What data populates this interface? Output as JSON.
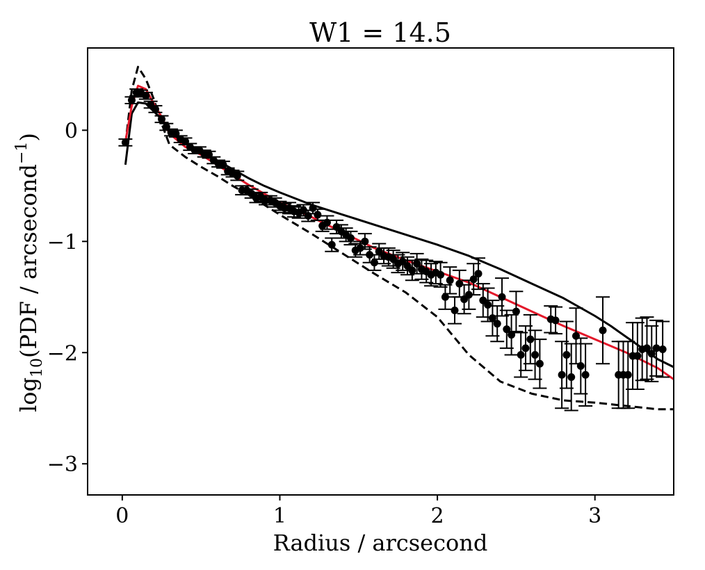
{
  "chart_data": {
    "type": "scatter",
    "title": "W1 = 14.5",
    "xlabel": "Radius / arcsecond",
    "ylabel": "log10(PDF / arcsecond⁻¹)",
    "ylabel_parts": {
      "log": "log",
      "sub": "10",
      "body": "(PDF / arcsecond",
      "sup": "−1",
      "close": ")"
    },
    "xlim": [
      -0.22,
      3.5
    ],
    "ylim": [
      -3.28,
      0.74
    ],
    "xticks": [
      0,
      1,
      2,
      3
    ],
    "xtick_labels": [
      "0",
      "1",
      "2",
      "3"
    ],
    "yticks": [
      0,
      -1,
      -2,
      -3
    ],
    "ytick_labels": [
      "0",
      "−1",
      "−2",
      "−3"
    ],
    "grid": false,
    "colors": {
      "points": "#000000",
      "model_red": "#e3182a",
      "model_black": "#000000"
    },
    "points": {
      "x": [
        0.02,
        0.06,
        0.09,
        0.12,
        0.15,
        0.18,
        0.21,
        0.25,
        0.28,
        0.31,
        0.34,
        0.37,
        0.4,
        0.43,
        0.46,
        0.49,
        0.52,
        0.55,
        0.58,
        0.61,
        0.64,
        0.67,
        0.7,
        0.73,
        0.76,
        0.79,
        0.82,
        0.85,
        0.88,
        0.91,
        0.94,
        0.97,
        1.0,
        1.03,
        1.06,
        1.09,
        1.12,
        1.15,
        1.18,
        1.21,
        1.24,
        1.27,
        1.3,
        1.33,
        1.36,
        1.39,
        1.42,
        1.45,
        1.48,
        1.51,
        1.54,
        1.57,
        1.6,
        1.63,
        1.66,
        1.69,
        1.72,
        1.75,
        1.78,
        1.81,
        1.84,
        1.87,
        1.9,
        1.93,
        1.96,
        1.99,
        2.02,
        2.05,
        2.08,
        2.11,
        2.14,
        2.17,
        2.2,
        2.23,
        2.26,
        2.29,
        2.32,
        2.35,
        2.38,
        2.41,
        2.44,
        2.47,
        2.5,
        2.53,
        2.56,
        2.59,
        2.62,
        2.65,
        2.72,
        2.75,
        2.79,
        2.82,
        2.85,
        2.88,
        2.91,
        2.94,
        3.05,
        3.15,
        3.18,
        3.21,
        3.24,
        3.27,
        3.3,
        3.33,
        3.36,
        3.39,
        3.43
      ],
      "y": [
        -0.11,
        0.27,
        0.34,
        0.33,
        0.31,
        0.23,
        0.19,
        0.1,
        0.03,
        -0.02,
        -0.03,
        -0.08,
        -0.1,
        -0.15,
        -0.18,
        -0.18,
        -0.21,
        -0.22,
        -0.27,
        -0.3,
        -0.31,
        -0.37,
        -0.39,
        -0.41,
        -0.54,
        -0.54,
        -0.57,
        -0.61,
        -0.6,
        -0.63,
        -0.63,
        -0.65,
        -0.68,
        -0.7,
        -0.7,
        -0.73,
        -0.74,
        -0.72,
        -0.77,
        -0.7,
        -0.76,
        -0.86,
        -0.83,
        -1.03,
        -0.87,
        -0.91,
        -0.94,
        -0.97,
        -1.08,
        -1.06,
        -1.0,
        -1.12,
        -1.19,
        -1.09,
        -1.13,
        -1.14,
        -1.16,
        -1.2,
        -1.18,
        -1.22,
        -1.26,
        -1.2,
        -1.25,
        -1.27,
        -1.3,
        -1.28,
        -1.3,
        -1.5,
        -1.35,
        -1.62,
        -1.38,
        -1.52,
        -1.48,
        -1.34,
        -1.29,
        -1.53,
        -1.57,
        -1.69,
        -1.74,
        -1.5,
        -1.79,
        -1.84,
        -1.63,
        -2.02,
        -1.96,
        -1.88,
        -2.02,
        -2.1,
        -1.7,
        -1.71,
        -2.2,
        -2.02,
        -2.22,
        -1.85,
        -2.12,
        -2.2,
        -1.8,
        -2.2,
        -2.2,
        -2.2,
        -2.03,
        -2.03,
        -1.97,
        -1.96,
        -2.01,
        -1.96,
        -1.97
      ],
      "err": [
        0.03,
        0.03,
        0.03,
        0.03,
        0.03,
        0.03,
        0.03,
        0.03,
        0.03,
        0.03,
        0.03,
        0.03,
        0.03,
        0.03,
        0.03,
        0.03,
        0.03,
        0.03,
        0.03,
        0.03,
        0.03,
        0.03,
        0.03,
        0.04,
        0.04,
        0.04,
        0.04,
        0.04,
        0.04,
        0.04,
        0.04,
        0.04,
        0.04,
        0.04,
        0.05,
        0.05,
        0.05,
        0.05,
        0.05,
        0.05,
        0.05,
        0.05,
        0.06,
        0.06,
        0.06,
        0.06,
        0.06,
        0.06,
        0.06,
        0.06,
        0.07,
        0.07,
        0.07,
        0.07,
        0.07,
        0.08,
        0.08,
        0.08,
        0.08,
        0.08,
        0.09,
        0.09,
        0.09,
        0.1,
        0.1,
        0.1,
        0.11,
        0.11,
        0.12,
        0.12,
        0.12,
        0.13,
        0.13,
        0.14,
        0.14,
        0.15,
        0.15,
        0.16,
        0.16,
        0.17,
        0.17,
        0.18,
        0.18,
        0.2,
        0.2,
        0.22,
        0.22,
        0.22,
        0.12,
        0.12,
        0.3,
        0.3,
        0.3,
        0.25,
        0.25,
        0.28,
        0.3,
        0.3,
        0.3,
        0.3,
        0.3,
        0.3,
        0.28,
        0.28,
        0.25,
        0.25,
        0.25
      ]
    },
    "series": [
      {
        "style": "solid-red",
        "x": [
          0.02,
          0.06,
          0.1,
          0.15,
          0.2,
          0.25,
          0.3,
          0.4,
          0.5,
          0.6,
          0.7,
          0.8,
          0.9,
          1.0,
          1.2,
          1.4,
          1.6,
          1.8,
          2.0,
          2.2,
          2.4,
          2.6,
          2.8,
          3.0,
          3.2,
          3.4,
          3.5
        ],
        "y": [
          -0.1,
          0.22,
          0.4,
          0.37,
          0.24,
          0.12,
          -0.03,
          -0.15,
          -0.22,
          -0.31,
          -0.4,
          -0.49,
          -0.57,
          -0.65,
          -0.78,
          -0.92,
          -1.06,
          -1.17,
          -1.27,
          -1.37,
          -1.5,
          -1.63,
          -1.76,
          -1.88,
          -2.0,
          -2.14,
          -2.24
        ]
      },
      {
        "style": "solid-black",
        "x": [
          0.02,
          0.06,
          0.1,
          0.15,
          0.2,
          0.25,
          0.3,
          0.4,
          0.5,
          0.6,
          0.7,
          0.8,
          0.9,
          1.0,
          1.2,
          1.4,
          1.6,
          1.8,
          2.0,
          2.2,
          2.4,
          2.6,
          2.8,
          3.0,
          3.1,
          3.2,
          3.3,
          3.4,
          3.5
        ],
        "y": [
          -0.31,
          0.15,
          0.25,
          0.24,
          0.17,
          0.1,
          -0.02,
          -0.12,
          -0.19,
          -0.27,
          -0.35,
          -0.43,
          -0.5,
          -0.56,
          -0.67,
          -0.76,
          -0.85,
          -0.94,
          -1.03,
          -1.13,
          -1.25,
          -1.38,
          -1.51,
          -1.67,
          -1.76,
          -1.86,
          -1.96,
          -2.06,
          -2.13
        ]
      },
      {
        "style": "dashed-black",
        "x": [
          0.02,
          0.06,
          0.1,
          0.15,
          0.2,
          0.25,
          0.3,
          0.4,
          0.5,
          0.6,
          0.7,
          0.8,
          0.9,
          1.0,
          1.2,
          1.4,
          1.6,
          1.8,
          2.0,
          2.2,
          2.4,
          2.6,
          2.8,
          3.0,
          3.2,
          3.4,
          3.5
        ],
        "y": [
          -0.12,
          0.36,
          0.57,
          0.46,
          0.28,
          0.06,
          -0.13,
          -0.24,
          -0.33,
          -0.41,
          -0.5,
          -0.58,
          -0.67,
          -0.76,
          -0.93,
          -1.11,
          -1.29,
          -1.46,
          -1.68,
          -2.02,
          -2.26,
          -2.37,
          -2.43,
          -2.45,
          -2.48,
          -2.51,
          -2.51
        ]
      }
    ]
  }
}
